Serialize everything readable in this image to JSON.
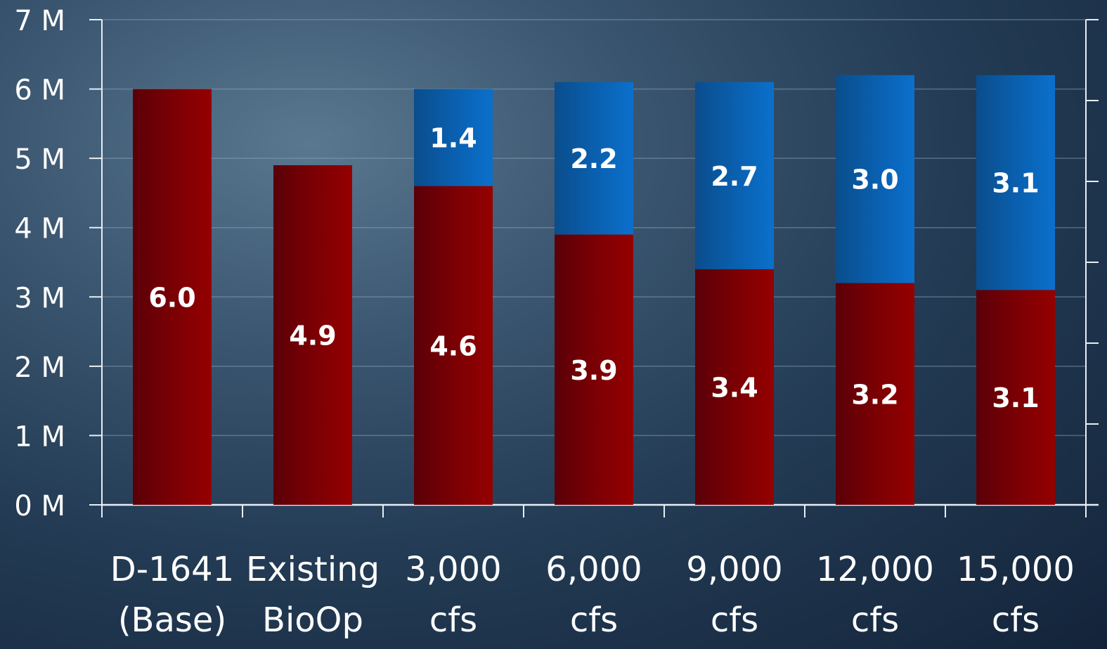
{
  "chart_data": {
    "type": "bar",
    "stacked": true,
    "categories": [
      [
        "D-1641",
        "(Base)"
      ],
      [
        "Existing",
        "BioOp"
      ],
      [
        "3,000",
        "cfs"
      ],
      [
        "6,000",
        "cfs"
      ],
      [
        "9,000",
        "cfs"
      ],
      [
        "12,000",
        "cfs"
      ],
      [
        "15,000",
        "cfs"
      ]
    ],
    "series": [
      {
        "values": [
          6.0,
          4.9,
          4.6,
          3.9,
          3.4,
          3.2,
          3.1
        ],
        "labels": [
          "6.0",
          "4.9",
          "4.6",
          "3.9",
          "3.4",
          "3.2",
          "3.1"
        ],
        "color": "#8b0000"
      },
      {
        "values": [
          0,
          0,
          1.4,
          2.2,
          2.7,
          3.0,
          3.1
        ],
        "labels": [
          "",
          "",
          "1.4",
          "2.2",
          "2.7",
          "3.0",
          "3.1"
        ],
        "color": "#0a6cc4"
      }
    ],
    "y_ticks": [
      "0 M",
      "1 M",
      "2 M",
      "3 M",
      "4 M",
      "5 M",
      "6 M",
      "7 M"
    ],
    "ylim": [
      0,
      7
    ],
    "grid": true,
    "legend": "none"
  }
}
